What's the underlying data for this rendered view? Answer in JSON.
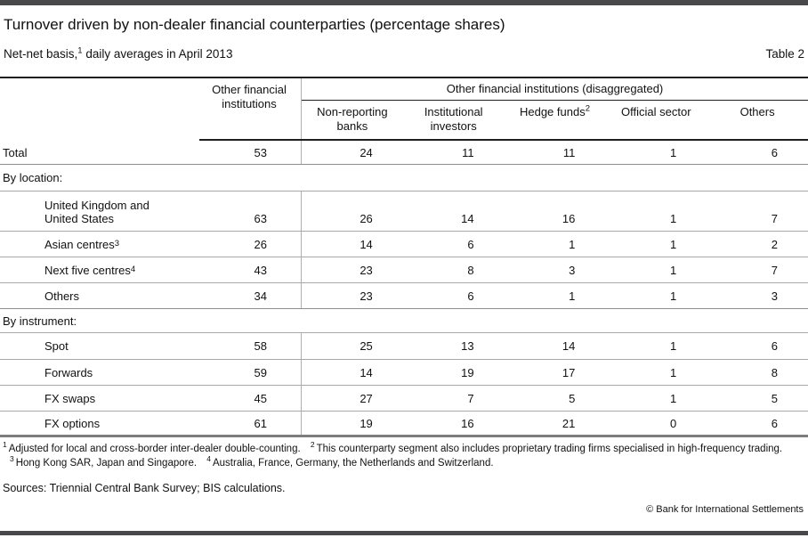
{
  "header": {
    "title": "Turnover driven by non-dealer financial counterparties (percentage shares)",
    "subtitle": {
      "text_before_sup": "Net-net basis,",
      "sup": "1",
      "text_after_sup": " daily averages in April 2013"
    },
    "table_label": "Table 2"
  },
  "table": {
    "col1_header": "Other financial institutions",
    "group_header": "Other financial institutions (disaggregated)",
    "columns": [
      {
        "label": "Non-reporting banks"
      },
      {
        "label": "Institutional investors"
      },
      {
        "label": "Hedge funds",
        "sup": "2"
      },
      {
        "label": "Official sector"
      },
      {
        "label": "Others"
      }
    ],
    "rows": [
      {
        "type": "data",
        "label": "Total",
        "ofi": 53,
        "values": [
          24,
          11,
          11,
          1,
          6
        ]
      },
      {
        "type": "section",
        "label": "By location:"
      },
      {
        "type": "data",
        "label_line1": "United Kingdom and",
        "label_line2": "United States",
        "ofi": 63,
        "values": [
          26,
          14,
          16,
          1,
          7
        ]
      },
      {
        "type": "data",
        "label": "Asian centres",
        "sup": "3",
        "ofi": 26,
        "values": [
          14,
          6,
          1,
          1,
          2
        ]
      },
      {
        "type": "data",
        "label": "Next five centres",
        "sup": "4",
        "ofi": 43,
        "values": [
          23,
          8,
          3,
          1,
          7
        ]
      },
      {
        "type": "data",
        "label": "Others",
        "ofi": 34,
        "values": [
          23,
          6,
          1,
          1,
          3
        ]
      },
      {
        "type": "section",
        "label": "By instrument:"
      },
      {
        "type": "data",
        "label": "Spot",
        "ofi": 58,
        "values": [
          25,
          13,
          14,
          1,
          6
        ]
      },
      {
        "type": "data",
        "label": "Forwards",
        "ofi": 59,
        "values": [
          14,
          19,
          17,
          1,
          8
        ]
      },
      {
        "type": "data",
        "label": "FX swaps",
        "ofi": 45,
        "values": [
          27,
          7,
          5,
          1,
          5
        ]
      },
      {
        "type": "data",
        "label": "FX options",
        "ofi": 61,
        "values": [
          19,
          16,
          21,
          0,
          6
        ]
      }
    ]
  },
  "footnotes": [
    {
      "marker": "1",
      "text": "Adjusted for local and cross-border inter-dealer double-counting."
    },
    {
      "marker": "2",
      "text": "This counterparty segment also includes proprietary trading firms specialised in high-frequency trading."
    },
    {
      "marker": "3",
      "text": "Hong Kong SAR, Japan and Singapore."
    },
    {
      "marker": "4",
      "text": "Australia, France, Germany, the Netherlands and Switzerland."
    }
  ],
  "sources": "Sources: Triennial Central Bank Survey; BIS calculations.",
  "copyright": "© Bank for International Settlements"
}
